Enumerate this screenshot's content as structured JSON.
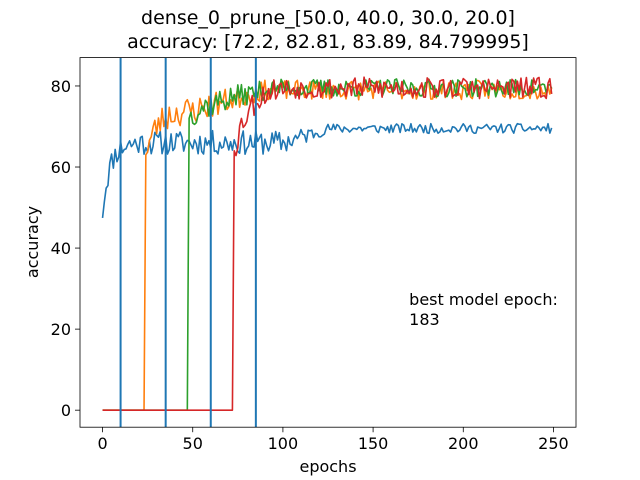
{
  "chart_data": {
    "type": "line",
    "title_line1": "dense_0_prune_[50.0, 40.0, 30.0, 20.0]",
    "title_line2": "accuracy: [72.2, 82.81, 83.89, 84.799995]",
    "xlabel": "epochs",
    "ylabel": "accuracy",
    "xlim": [
      -12.5,
      262.5
    ],
    "ylim": [
      -4.2,
      87.0
    ],
    "xticks": [
      0,
      50,
      100,
      150,
      200,
      250
    ],
    "yticks": [
      0,
      20,
      40,
      60,
      80
    ],
    "vlines": {
      "x": [
        10,
        35,
        60,
        85
      ],
      "color": "#1f77b4"
    },
    "annotation": {
      "text_line1": "best model epoch:",
      "text_line2": "183",
      "x": 170,
      "y": 21
    },
    "series": [
      {
        "color": "#1f77b4",
        "start_epoch": 0,
        "pre_value": 0,
        "mode": "log",
        "y0": 49,
        "plateau1": 66,
        "plateau2": 69.5,
        "ramp": [
          100,
          125
        ],
        "noise": 2.0,
        "noise2": 0.8,
        "seed": 11
      },
      {
        "color": "#ff7f0e",
        "start_epoch": 24,
        "pre_value": 0,
        "mode": "grow",
        "y0": 63,
        "plateau1": 74,
        "plateau2": 79,
        "ramp": [
          50,
          90
        ],
        "noise": 2.4,
        "noise2": 1.6,
        "seed": 23
      },
      {
        "color": "#2ca02c",
        "start_epoch": 48,
        "pre_value": 0,
        "mode": "grow",
        "y0": 72,
        "plateau1": 76,
        "plateau2": 79.5,
        "ramp": [
          60,
          95
        ],
        "noise": 2.2,
        "noise2": 1.5,
        "seed": 37
      },
      {
        "color": "#d62728",
        "start_epoch": 73,
        "pre_value": 0,
        "mode": "grow",
        "y0": 64,
        "plateau1": 76,
        "plateau2": 79.5,
        "ramp": [
          73,
          95
        ],
        "noise": 2.6,
        "noise2": 1.8,
        "seed": 53
      }
    ],
    "n_epochs": 250
  }
}
